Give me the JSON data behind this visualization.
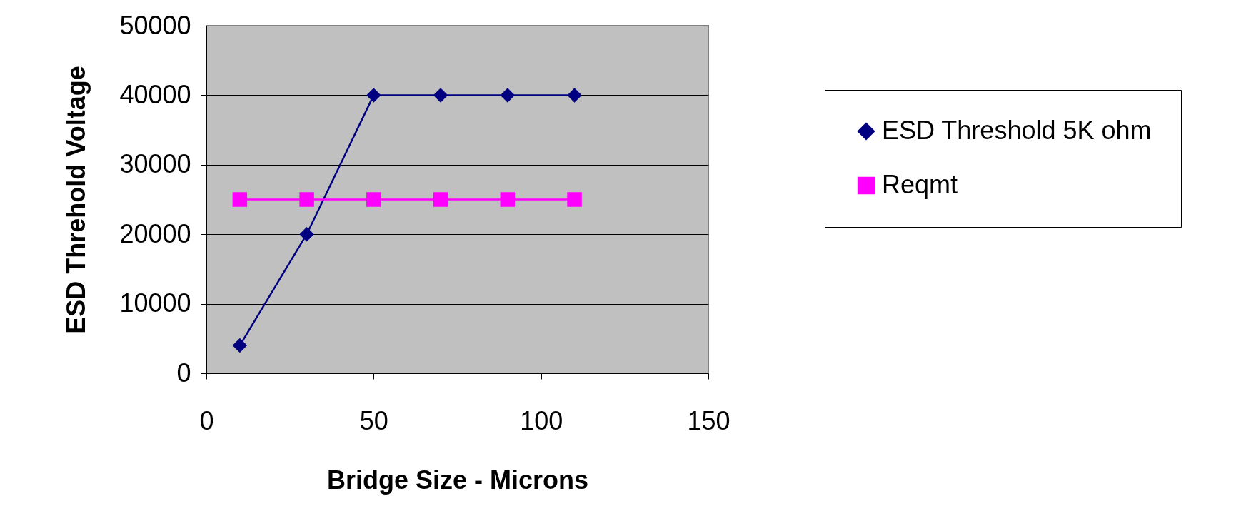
{
  "chart_data": {
    "type": "line",
    "xlabel": "Bridge Size - Microns",
    "ylabel": "ESD Threhold Voltage",
    "xlim": [
      0,
      150
    ],
    "xticks": [
      0,
      50,
      100,
      150
    ],
    "ylim": [
      0,
      50000
    ],
    "yticks": [
      0,
      10000,
      20000,
      30000,
      40000,
      50000
    ],
    "grid": "y",
    "legend": "right",
    "series": [
      {
        "name": "ESD Threshold 5K ohm",
        "color": "#000080",
        "marker": "diamond",
        "x": [
          10,
          30,
          50,
          70,
          90,
          110
        ],
        "values": [
          4000,
          20000,
          40000,
          40000,
          40000,
          40000
        ]
      },
      {
        "name": "Reqmt",
        "color": "#ff00ff",
        "marker": "square",
        "x": [
          10,
          30,
          50,
          70,
          90,
          110
        ],
        "values": [
          25000,
          25000,
          25000,
          25000,
          25000,
          25000
        ]
      }
    ]
  }
}
